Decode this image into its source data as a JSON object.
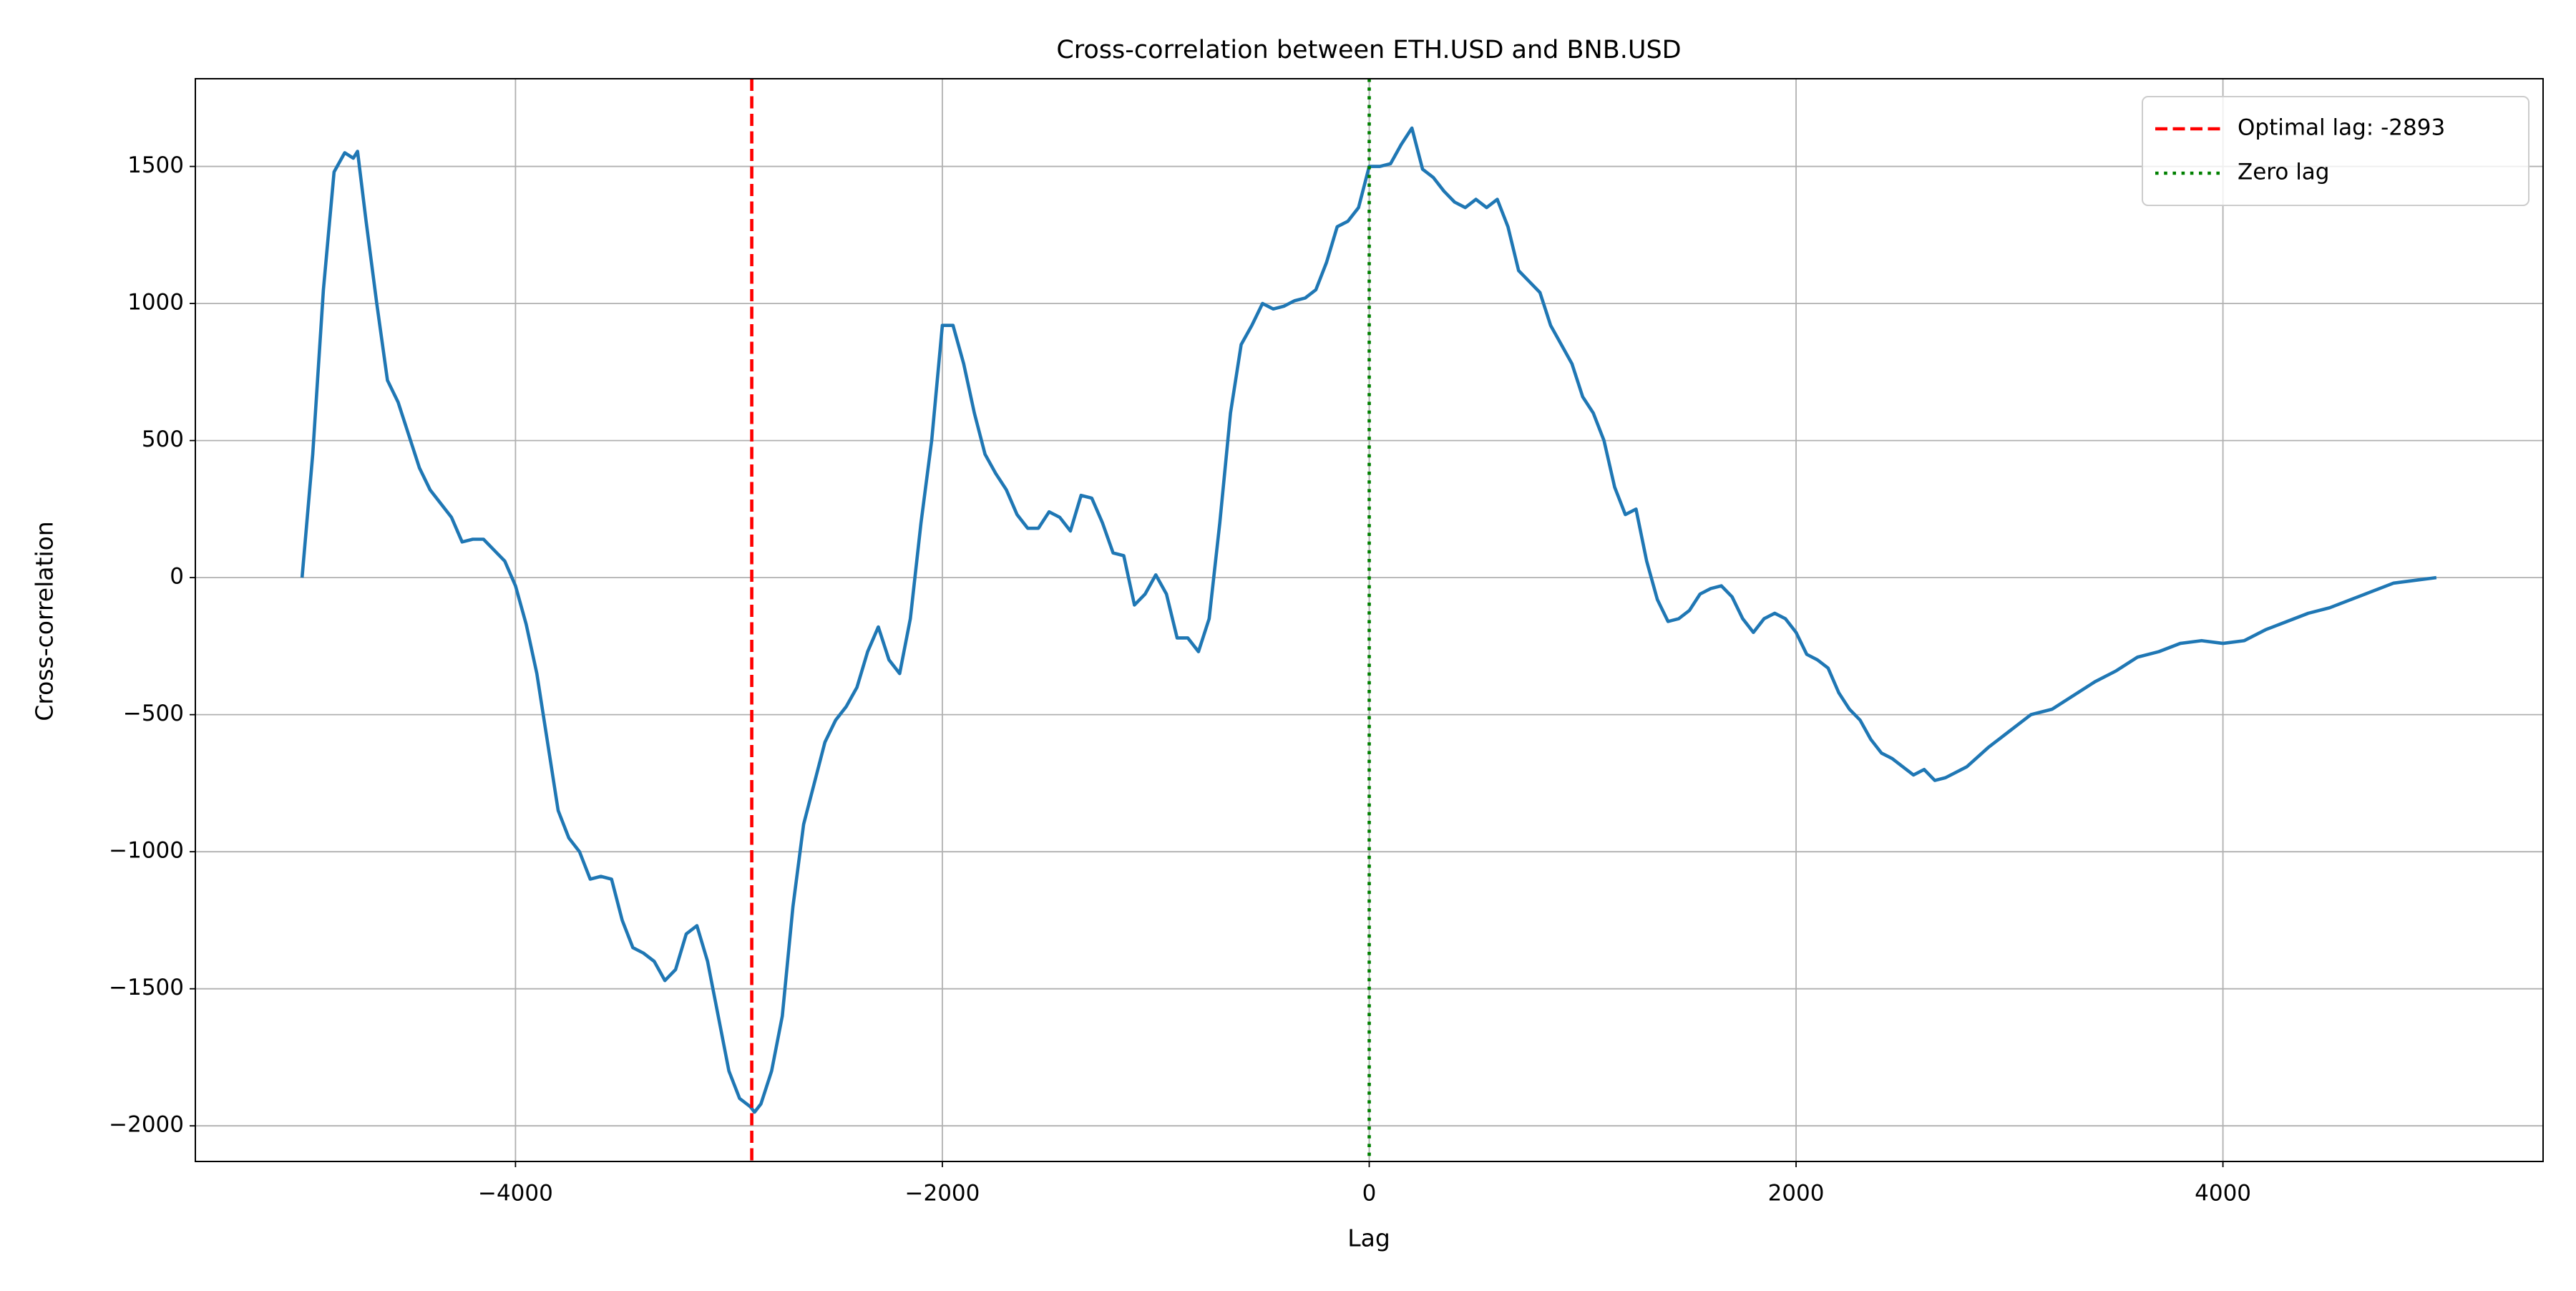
{
  "chart_data": {
    "type": "line",
    "title": "Cross-correlation between ETH.USD and BNB.USD",
    "xlabel": "Lag",
    "ylabel": "Cross-correlation",
    "x": [
      -5000,
      -4950,
      -4900,
      -4850,
      -4800,
      -4760,
      -4740,
      -4700,
      -4650,
      -4600,
      -4550,
      -4500,
      -4450,
      -4400,
      -4350,
      -4300,
      -4250,
      -4200,
      -4150,
      -4100,
      -4050,
      -4000,
      -3950,
      -3900,
      -3850,
      -3800,
      -3750,
      -3700,
      -3650,
      -3600,
      -3550,
      -3500,
      -3450,
      -3400,
      -3350,
      -3300,
      -3250,
      -3200,
      -3150,
      -3100,
      -3050,
      -3000,
      -2950,
      -2900,
      -2880,
      -2850,
      -2800,
      -2750,
      -2700,
      -2650,
      -2600,
      -2550,
      -2500,
      -2450,
      -2400,
      -2350,
      -2300,
      -2250,
      -2200,
      -2150,
      -2100,
      -2050,
      -2000,
      -1950,
      -1900,
      -1850,
      -1800,
      -1750,
      -1700,
      -1650,
      -1600,
      -1550,
      -1500,
      -1450,
      -1400,
      -1350,
      -1300,
      -1250,
      -1200,
      -1150,
      -1100,
      -1050,
      -1000,
      -950,
      -900,
      -850,
      -800,
      -750,
      -700,
      -650,
      -600,
      -550,
      -500,
      -450,
      -400,
      -350,
      -300,
      -250,
      -200,
      -150,
      -100,
      -50,
      0,
      50,
      100,
      150,
      200,
      250,
      300,
      350,
      400,
      450,
      500,
      550,
      600,
      650,
      700,
      750,
      800,
      850,
      900,
      950,
      1000,
      1050,
      1100,
      1150,
      1200,
      1250,
      1300,
      1350,
      1400,
      1450,
      1500,
      1550,
      1600,
      1650,
      1700,
      1750,
      1800,
      1850,
      1900,
      1950,
      2000,
      2050,
      2100,
      2150,
      2200,
      2250,
      2300,
      2350,
      2400,
      2450,
      2500,
      2550,
      2600,
      2650,
      2700,
      2800,
      2900,
      3000,
      3100,
      3200,
      3300,
      3400,
      3500,
      3600,
      3700,
      3800,
      3900,
      4000,
      4100,
      4200,
      4300,
      4400,
      4500,
      4600,
      4700,
      4800,
      4900,
      5000
    ],
    "series": [
      {
        "color": "#1f77b4",
        "values": [
          0,
          450,
          1050,
          1480,
          1550,
          1530,
          1555,
          1300,
          1000,
          720,
          640,
          520,
          400,
          320,
          270,
          220,
          130,
          140,
          140,
          100,
          60,
          -30,
          -170,
          -350,
          -600,
          -850,
          -950,
          -1000,
          -1100,
          -1090,
          -1100,
          -1250,
          -1350,
          -1370,
          -1400,
          -1470,
          -1430,
          -1300,
          -1270,
          -1400,
          -1600,
          -1800,
          -1900,
          -1930,
          -1950,
          -1920,
          -1800,
          -1600,
          -1200,
          -900,
          -750,
          -600,
          -520,
          -470,
          -400,
          -270,
          -180,
          -300,
          -350,
          -150,
          200,
          500,
          920,
          920,
          780,
          600,
          450,
          380,
          320,
          230,
          180,
          180,
          240,
          220,
          170,
          300,
          290,
          200,
          90,
          80,
          -100,
          -60,
          10,
          -60,
          -220,
          -220,
          -270,
          -150,
          200,
          600,
          850,
          920,
          1000,
          980,
          990,
          1010,
          1020,
          1050,
          1150,
          1280,
          1300,
          1350,
          1500,
          1500,
          1510,
          1580,
          1640,
          1490,
          1460,
          1410,
          1370,
          1350,
          1380,
          1350,
          1380,
          1280,
          1120,
          1080,
          1040,
          920,
          850,
          780,
          660,
          600,
          500,
          330,
          230,
          250,
          60,
          -80,
          -160,
          -150,
          -120,
          -60,
          -40,
          -30,
          -70,
          -150,
          -200,
          -150,
          -130,
          -150,
          -200,
          -280,
          -300,
          -330,
          -420,
          -480,
          -520,
          -590,
          -640,
          -660,
          -690,
          -720,
          -700,
          -740,
          -730,
          -690,
          -620,
          -560,
          -500,
          -480,
          -430,
          -380,
          -340,
          -290,
          -270,
          -240,
          -230,
          -240,
          -230,
          -190,
          -160,
          -130,
          -110,
          -80,
          -50,
          -20,
          -10,
          0
        ]
      }
    ],
    "vlines": [
      {
        "x": -2893,
        "label": "Optimal lag: -2893",
        "color": "#ff0000",
        "style": "dashed"
      },
      {
        "x": 0,
        "label": "Zero lag",
        "color": "#008000",
        "style": "dotted"
      }
    ],
    "xlim": [
      -5500,
      5500
    ],
    "ylim": [
      -2130,
      1820
    ],
    "xticks": [
      {
        "value": -4000,
        "label": "−4000"
      },
      {
        "value": -2000,
        "label": "−2000"
      },
      0,
      2000,
      4000
    ],
    "yticks": [
      {
        "value": -2000,
        "label": "−2000"
      },
      {
        "value": -1500,
        "label": "−1500"
      },
      {
        "value": -1000,
        "label": "−1000"
      },
      {
        "value": -500,
        "label": "−500"
      },
      0,
      500,
      1000,
      1500
    ],
    "grid": true,
    "legend": "upper right"
  }
}
